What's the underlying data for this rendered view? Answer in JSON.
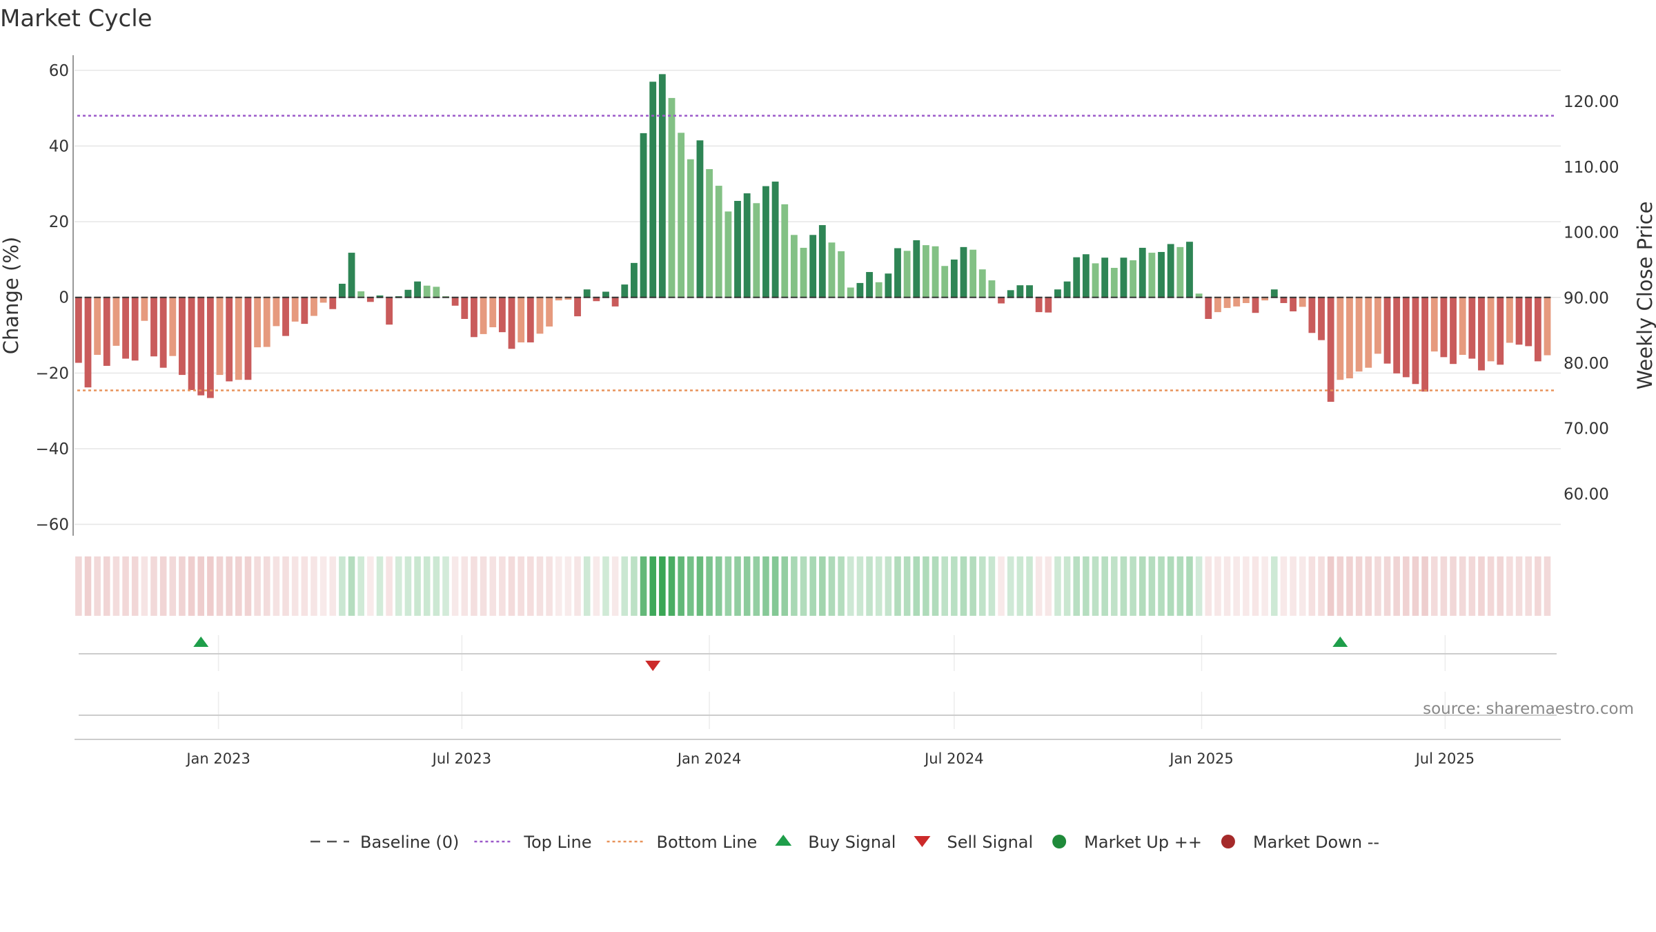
{
  "chart_data": {
    "type": "bar",
    "title": "Market Cycle",
    "y_left_label": "Change (%)",
    "y_right_label": "Weekly Close Price",
    "y_left_range": [
      -63,
      64
    ],
    "y_right_range": [
      53.6,
      127.1
    ],
    "y_left_ticks": [
      {
        "value": 60,
        "label": "60"
      },
      {
        "value": 40,
        "label": "40"
      },
      {
        "value": 20,
        "label": "20"
      },
      {
        "value": 0,
        "label": "0"
      },
      {
        "value": -20,
        "label": "−20"
      },
      {
        "value": -40,
        "label": "−40"
      },
      {
        "value": -60,
        "label": "−60"
      }
    ],
    "y_right_ticks": [
      {
        "value": 120,
        "label": "120.00"
      },
      {
        "value": 110,
        "label": "110.00"
      },
      {
        "value": 100,
        "label": "100.00"
      },
      {
        "value": 90,
        "label": "90.00"
      },
      {
        "value": 80,
        "label": "80.00"
      },
      {
        "value": 70,
        "label": "70.00"
      },
      {
        "value": 60,
        "label": "60.00"
      }
    ],
    "x_date_range": [
      "2022-09-16",
      "2025-09-25"
    ],
    "date_ticks": [
      {
        "date": "2023-01-01",
        "label": "Jan 2023"
      },
      {
        "date": "2023-07-01",
        "label": "Jul 2023"
      },
      {
        "date": "2024-01-01",
        "label": "Jan 2024"
      },
      {
        "date": "2024-07-01",
        "label": "Jul 2024"
      },
      {
        "date": "2025-01-01",
        "label": "Jan 2025"
      },
      {
        "date": "2025-07-01",
        "label": "Jul 2025"
      }
    ],
    "first_week": "2022-09-19",
    "week_step_days": 7,
    "reference_lines": {
      "baseline": 0,
      "top_line": 48,
      "bottom_line": -24.6
    },
    "colors": {
      "strong_up": "#2e8555",
      "weak_up": "#83c185",
      "strong_down": "#c95b5b",
      "weak_down": "#e69a7e",
      "top_line": "#9b59c9",
      "bottom_line": "#e8935a",
      "baseline": "#555555",
      "buy": "#1e9e4a",
      "sell": "#cc2a2a",
      "market_up": "#1f8a3a",
      "market_down": "#a52a2a"
    },
    "series": [
      {
        "name": "Change (%)",
        "values": [
          -17.3,
          -23.8,
          -15.2,
          -18.1,
          -12.8,
          -16.2,
          -16.7,
          -6.2,
          -15.6,
          -18.6,
          -15.5,
          -20.5,
          -24.5,
          -25.9,
          -26.6,
          -20.5,
          -22.2,
          -21.8,
          -21.8,
          -13.2,
          -13.1,
          -7.6,
          -10.2,
          -6.4,
          -7.0,
          -4.9,
          -1.4,
          -3.1,
          3.6,
          11.8,
          1.6,
          -1.2,
          0.5,
          -7.2,
          0.3,
          2.0,
          4.2,
          3.1,
          2.8,
          0.3,
          -2.2,
          -5.7,
          -10.5,
          -9.7,
          -7.9,
          -9.2,
          -13.6,
          -11.9,
          -11.9,
          -9.6,
          -7.7,
          -0.8,
          -0.6,
          -5.0,
          2.1,
          -1.0,
          1.5,
          -2.4,
          3.4,
          9.1,
          43.4,
          57.0,
          59.0,
          52.7,
          43.5,
          36.5,
          41.5,
          33.9,
          29.5,
          22.7,
          25.5,
          27.5,
          24.9,
          29.4,
          30.6,
          24.6,
          16.5,
          13.1,
          16.5,
          19.1,
          14.5,
          12.2,
          2.6,
          3.8,
          6.7,
          4.0,
          6.3,
          13.0,
          12.3,
          15.1,
          13.8,
          13.5,
          8.3,
          10.0,
          13.3,
          12.6,
          7.4,
          4.5,
          -1.6,
          1.9,
          3.2,
          3.2,
          -3.9,
          -4.0,
          2.1,
          4.2,
          10.6,
          11.4,
          9.0,
          10.5,
          7.8,
          10.5,
          9.8,
          13.1,
          11.8,
          12.0,
          14.1,
          13.3,
          14.7,
          1.0,
          -5.7,
          -3.9,
          -2.8,
          -2.4,
          -1.5,
          -4.1,
          -0.8,
          2.1,
          -1.5,
          -3.7,
          -2.5,
          -9.4,
          -11.3,
          -27.6,
          -21.8,
          -21.4,
          -19.6,
          -18.6,
          -14.9,
          -17.5,
          -20.1,
          -21.1,
          -22.9,
          -24.9,
          -14.3,
          -15.8,
          -17.6,
          -15.2,
          -16.2,
          -19.3,
          -16.9,
          -17.8,
          -12.0,
          -12.5,
          -12.9,
          -16.9,
          -15.3
        ]
      }
    ],
    "signals": {
      "buy_weeks": [
        13,
        134
      ],
      "sell_weeks": [
        61
      ]
    },
    "legend": [
      {
        "key": "baseline",
        "label": "Baseline (0)"
      },
      {
        "key": "top_line",
        "label": "Top Line"
      },
      {
        "key": "bottom_line",
        "label": "Bottom Line"
      },
      {
        "key": "buy",
        "label": "Buy Signal"
      },
      {
        "key": "sell",
        "label": "Sell Signal"
      },
      {
        "key": "market_up",
        "label": "Market Up ++"
      },
      {
        "key": "market_down",
        "label": "Market Down --"
      }
    ],
    "source": "source: sharemaestro.com"
  }
}
